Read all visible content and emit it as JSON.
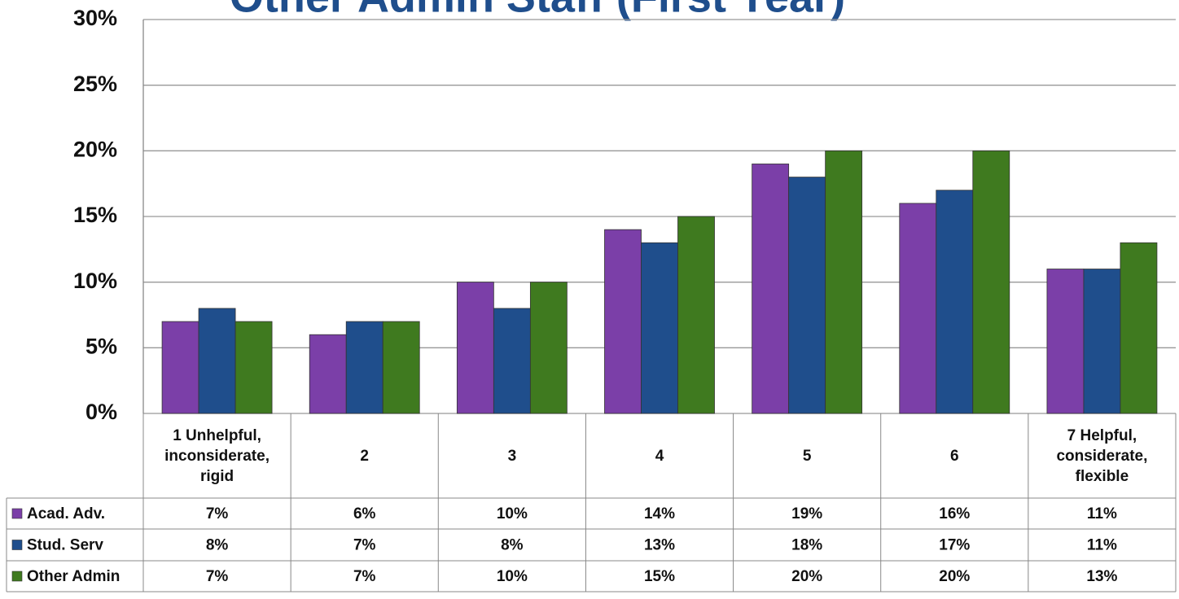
{
  "chart_data": {
    "type": "bar",
    "title": "Other Admin Staff (First Year)",
    "categories": [
      "1 Unhelpful, inconsiderate, rigid",
      "2",
      "3",
      "4",
      "5",
      "6",
      "7 Helpful, considerate, flexible"
    ],
    "series": [
      {
        "name": "Acad. Adv.",
        "color": "#7b3fa8",
        "values": [
          7,
          6,
          10,
          14,
          19,
          16,
          11
        ],
        "value_labels": [
          "7%",
          "6%",
          "10%",
          "14%",
          "19%",
          "16%",
          "11%"
        ]
      },
      {
        "name": "Stud. Serv",
        "color": "#1f4e8c",
        "values": [
          8,
          7,
          8,
          13,
          18,
          17,
          11
        ],
        "value_labels": [
          "8%",
          "7%",
          "8%",
          "13%",
          "18%",
          "17%",
          "11%"
        ]
      },
      {
        "name": "Other Admin",
        "color": "#3f7a1f",
        "values": [
          7,
          7,
          10,
          15,
          20,
          20,
          13
        ],
        "value_labels": [
          "7%",
          "7%",
          "10%",
          "15%",
          "20%",
          "20%",
          "13%"
        ]
      }
    ],
    "ylim": [
      0,
      30
    ],
    "yticks": [
      {
        "value": 0,
        "label": "0%"
      },
      {
        "value": 5,
        "label": "5%"
      },
      {
        "value": 10,
        "label": "10%"
      },
      {
        "value": 15,
        "label": "15%"
      },
      {
        "value": 20,
        "label": "20%"
      },
      {
        "value": 25,
        "label": "25%"
      },
      {
        "value": 30,
        "label": "30%"
      }
    ],
    "grid": true
  }
}
